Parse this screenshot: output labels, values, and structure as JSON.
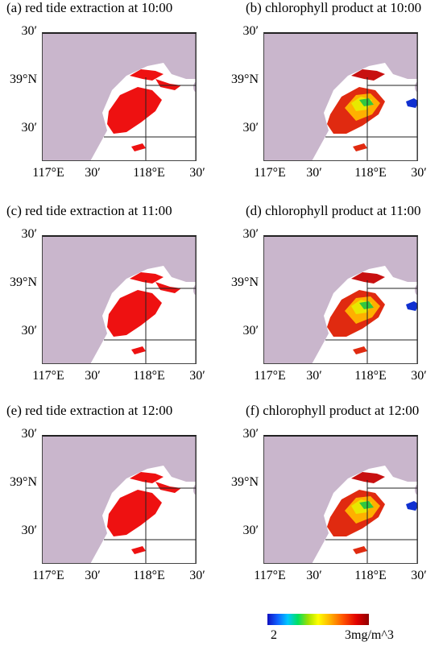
{
  "panels": [
    {
      "title": "(a) red tide extraction at 10:00",
      "kind": "extraction"
    },
    {
      "title": "(b) chlorophyll product at 10:00",
      "kind": "chlorophyll"
    },
    {
      "title": "(c) red tide extraction at 11:00",
      "kind": "extraction"
    },
    {
      "title": "(d) chlorophyll product at 11:00",
      "kind": "chlorophyll"
    },
    {
      "title": "(e) red tide extraction at 12:00",
      "kind": "extraction"
    },
    {
      "title": "(f) chlorophyll product at 12:00",
      "kind": "chlorophyll"
    }
  ],
  "axes": {
    "y_ticks": [
      "30′",
      "39°N",
      "30′"
    ],
    "x_ticks": [
      "117°E",
      "30′",
      "118°E",
      "30′"
    ]
  },
  "colorbar": {
    "min_label": "2",
    "max_label": "3mg/m^3"
  },
  "colors": {
    "land": "#c9b6cc",
    "sea": "#ffffff",
    "red_tide": "#ee1111"
  }
}
